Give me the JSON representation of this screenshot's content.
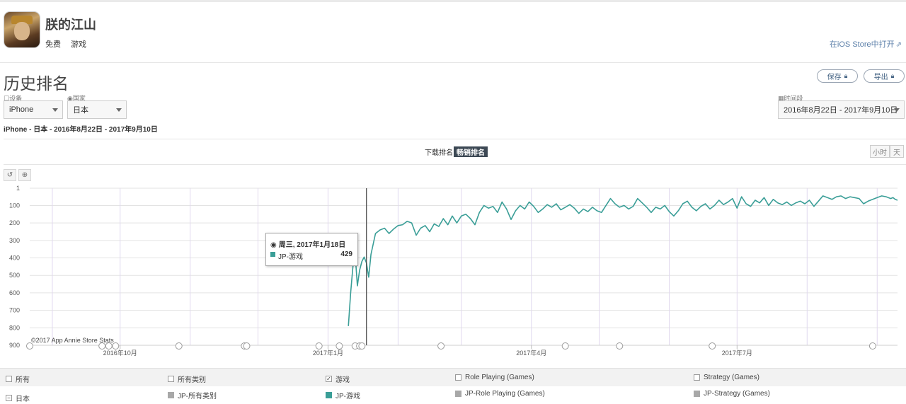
{
  "app": {
    "title": "朕的江山",
    "price": "免费",
    "category": "游戏",
    "open_store": "在iOS Store中打开"
  },
  "section": {
    "title": "历史排名",
    "save_label": "保存",
    "export_label": "导出"
  },
  "filters": {
    "device_label": "设备",
    "device_value": "iPhone",
    "country_label": "国家",
    "country_value": "日本",
    "period_label": "时间段",
    "period_value": "2016年8月22日 - 2017年9月10日"
  },
  "summary": "iPhone - 日本 - 2016年8月22日 - 2017年9月10日",
  "tabs": {
    "downloads": "下载排名",
    "grossing": "畅销排名"
  },
  "granularity": {
    "hour": "小时",
    "day": "天"
  },
  "tools": {
    "reset": "↺",
    "zoom": "⊕"
  },
  "tooltip": {
    "date": "周三, 2017年1月18日",
    "series": "JP-游戏",
    "value": "429"
  },
  "copyright": "©2017 App Annie Store Stats",
  "colors": {
    "series": "#3a9e97",
    "gray_swatch": "#a8a8a8"
  },
  "legend": {
    "row1": [
      "所有",
      "所有类别",
      "游戏",
      "Role Playing (Games)",
      "Strategy (Games)"
    ],
    "row1_checked": [
      false,
      false,
      true,
      false,
      false
    ],
    "row2": [
      "日本",
      "JP-所有类别",
      "JP-游戏",
      "JP-Role Playing (Games)",
      "JP-Strategy (Games)"
    ]
  },
  "chart_data": {
    "type": "line",
    "title": "",
    "xlabel": "",
    "ylabel": "",
    "y_reversed": true,
    "ylim": [
      1,
      900
    ],
    "yticks": [
      1,
      100,
      200,
      300,
      400,
      500,
      600,
      700,
      800,
      900
    ],
    "x_range": [
      "2016-08-22",
      "2017-09-10"
    ],
    "x_tick_labels": [
      {
        "date": "2016-10-01",
        "label": "2016年10月"
      },
      {
        "date": "2017-01-01",
        "label": "2017年1月"
      },
      {
        "date": "2017-04-01",
        "label": "2017年4月"
      },
      {
        "date": "2017-07-01",
        "label": "2017年7月"
      }
    ],
    "grid": true,
    "crosshair_date": "2017-01-18",
    "series": [
      {
        "name": "JP-游戏",
        "points": [
          [
            "2017-01-10",
            790
          ],
          [
            "2017-01-11",
            600
          ],
          [
            "2017-01-12",
            450
          ],
          [
            "2017-01-13",
            380
          ],
          [
            "2017-01-14",
            560
          ],
          [
            "2017-01-15",
            470
          ],
          [
            "2017-01-16",
            420
          ],
          [
            "2017-01-17",
            395
          ],
          [
            "2017-01-18",
            429
          ],
          [
            "2017-01-19",
            510
          ],
          [
            "2017-01-20",
            380
          ],
          [
            "2017-01-22",
            260
          ],
          [
            "2017-01-24",
            240
          ],
          [
            "2017-01-26",
            230
          ],
          [
            "2017-01-28",
            260
          ],
          [
            "2017-01-30",
            235
          ],
          [
            "2017-02-01",
            215
          ],
          [
            "2017-02-03",
            210
          ],
          [
            "2017-02-05",
            190
          ],
          [
            "2017-02-07",
            200
          ],
          [
            "2017-02-09",
            270
          ],
          [
            "2017-02-11",
            230
          ],
          [
            "2017-02-13",
            215
          ],
          [
            "2017-02-15",
            250
          ],
          [
            "2017-02-17",
            205
          ],
          [
            "2017-02-19",
            220
          ],
          [
            "2017-02-21",
            175
          ],
          [
            "2017-02-23",
            210
          ],
          [
            "2017-02-25",
            160
          ],
          [
            "2017-02-27",
            200
          ],
          [
            "2017-03-01",
            160
          ],
          [
            "2017-03-03",
            150
          ],
          [
            "2017-03-05",
            175
          ],
          [
            "2017-03-07",
            210
          ],
          [
            "2017-03-09",
            140
          ],
          [
            "2017-03-11",
            100
          ],
          [
            "2017-03-13",
            115
          ],
          [
            "2017-03-15",
            105
          ],
          [
            "2017-03-17",
            140
          ],
          [
            "2017-03-19",
            80
          ],
          [
            "2017-03-21",
            120
          ],
          [
            "2017-03-23",
            180
          ],
          [
            "2017-03-25",
            130
          ],
          [
            "2017-03-27",
            100
          ],
          [
            "2017-03-29",
            120
          ],
          [
            "2017-03-31",
            80
          ],
          [
            "2017-04-02",
            105
          ],
          [
            "2017-04-04",
            140
          ],
          [
            "2017-04-06",
            120
          ],
          [
            "2017-04-08",
            95
          ],
          [
            "2017-04-10",
            110
          ],
          [
            "2017-04-12",
            90
          ],
          [
            "2017-04-14",
            125
          ],
          [
            "2017-04-16",
            110
          ],
          [
            "2017-04-18",
            95
          ],
          [
            "2017-04-20",
            115
          ],
          [
            "2017-04-22",
            145
          ],
          [
            "2017-04-24",
            120
          ],
          [
            "2017-04-26",
            135
          ],
          [
            "2017-04-28",
            110
          ],
          [
            "2017-04-30",
            130
          ],
          [
            "2017-05-02",
            140
          ],
          [
            "2017-05-04",
            100
          ],
          [
            "2017-05-06",
            60
          ],
          [
            "2017-05-08",
            90
          ],
          [
            "2017-05-10",
            110
          ],
          [
            "2017-05-12",
            100
          ],
          [
            "2017-05-14",
            120
          ],
          [
            "2017-05-16",
            105
          ],
          [
            "2017-05-18",
            60
          ],
          [
            "2017-05-20",
            85
          ],
          [
            "2017-05-22",
            110
          ],
          [
            "2017-05-24",
            140
          ],
          [
            "2017-05-26",
            110
          ],
          [
            "2017-05-28",
            120
          ],
          [
            "2017-05-30",
            100
          ],
          [
            "2017-06-01",
            135
          ],
          [
            "2017-06-03",
            160
          ],
          [
            "2017-06-05",
            130
          ],
          [
            "2017-06-07",
            90
          ],
          [
            "2017-06-09",
            75
          ],
          [
            "2017-06-11",
            110
          ],
          [
            "2017-06-13",
            130
          ],
          [
            "2017-06-15",
            105
          ],
          [
            "2017-06-17",
            90
          ],
          [
            "2017-06-19",
            120
          ],
          [
            "2017-06-21",
            100
          ],
          [
            "2017-06-23",
            70
          ],
          [
            "2017-06-25",
            95
          ],
          [
            "2017-06-27",
            80
          ],
          [
            "2017-06-29",
            60
          ],
          [
            "2017-07-01",
            115
          ],
          [
            "2017-07-03",
            50
          ],
          [
            "2017-07-05",
            90
          ],
          [
            "2017-07-07",
            105
          ],
          [
            "2017-07-09",
            70
          ],
          [
            "2017-07-11",
            85
          ],
          [
            "2017-07-13",
            55
          ],
          [
            "2017-07-15",
            100
          ],
          [
            "2017-07-17",
            65
          ],
          [
            "2017-07-19",
            85
          ],
          [
            "2017-07-21",
            95
          ],
          [
            "2017-07-23",
            80
          ],
          [
            "2017-07-25",
            100
          ],
          [
            "2017-07-27",
            85
          ],
          [
            "2017-07-29",
            75
          ],
          [
            "2017-07-31",
            90
          ],
          [
            "2017-08-02",
            70
          ],
          [
            "2017-08-04",
            105
          ],
          [
            "2017-08-06",
            75
          ],
          [
            "2017-08-08",
            45
          ],
          [
            "2017-08-10",
            55
          ],
          [
            "2017-08-12",
            65
          ],
          [
            "2017-08-14",
            50
          ],
          [
            "2017-08-16",
            45
          ],
          [
            "2017-08-18",
            60
          ],
          [
            "2017-08-20",
            50
          ],
          [
            "2017-08-22",
            55
          ],
          [
            "2017-08-24",
            60
          ],
          [
            "2017-08-26",
            90
          ],
          [
            "2017-08-28",
            75
          ],
          [
            "2017-08-30",
            65
          ],
          [
            "2017-09-01",
            55
          ],
          [
            "2017-09-03",
            45
          ],
          [
            "2017-09-05",
            50
          ],
          [
            "2017-09-07",
            60
          ],
          [
            "2017-09-08",
            55
          ],
          [
            "2017-09-09",
            65
          ],
          [
            "2017-09-10",
            70
          ]
        ]
      }
    ]
  }
}
